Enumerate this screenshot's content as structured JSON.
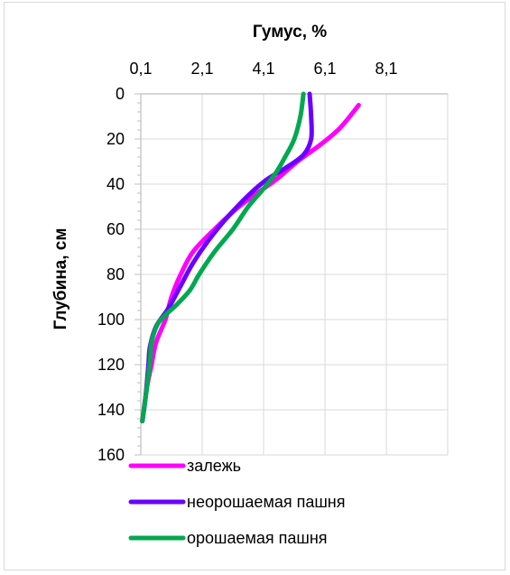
{
  "chart_data": {
    "type": "line",
    "title": "",
    "xlabel": "Гумус, %",
    "ylabel": "Глубина, см",
    "x_axis_position": "top",
    "y_axis_inverted": true,
    "xlim": [
      0.1,
      10.1
    ],
    "ylim": [
      0,
      160
    ],
    "x_ticks": [
      "0,1",
      "2,1",
      "4,1",
      "6,1",
      "8,1"
    ],
    "y_ticks": [
      "0",
      "20",
      "40",
      "60",
      "80",
      "100",
      "120",
      "140",
      "160"
    ],
    "grid": true,
    "legend_position": "bottom",
    "series": [
      {
        "name": "залежь",
        "color": "#ff00ff",
        "points": [
          {
            "x": 7.2,
            "y": 5
          },
          {
            "x": 6.6,
            "y": 15
          },
          {
            "x": 6.0,
            "y": 22
          },
          {
            "x": 5.2,
            "y": 30
          },
          {
            "x": 4.6,
            "y": 37
          },
          {
            "x": 4.1,
            "y": 42
          },
          {
            "x": 3.3,
            "y": 50
          },
          {
            "x": 2.5,
            "y": 60
          },
          {
            "x": 1.8,
            "y": 70
          },
          {
            "x": 1.4,
            "y": 80
          },
          {
            "x": 1.1,
            "y": 90
          },
          {
            "x": 0.9,
            "y": 100
          },
          {
            "x": 0.6,
            "y": 110
          },
          {
            "x": 0.45,
            "y": 120
          },
          {
            "x": 0.3,
            "y": 130
          },
          {
            "x": 0.15,
            "y": 145
          }
        ]
      },
      {
        "name": "неорошаемая пашня",
        "color": "#6a00ff",
        "points": [
          {
            "x": 5.6,
            "y": 0
          },
          {
            "x": 5.65,
            "y": 10
          },
          {
            "x": 5.65,
            "y": 20
          },
          {
            "x": 5.4,
            "y": 27
          },
          {
            "x": 4.8,
            "y": 33
          },
          {
            "x": 4.2,
            "y": 38
          },
          {
            "x": 3.6,
            "y": 45
          },
          {
            "x": 2.9,
            "y": 55
          },
          {
            "x": 2.3,
            "y": 65
          },
          {
            "x": 1.8,
            "y": 75
          },
          {
            "x": 1.4,
            "y": 85
          },
          {
            "x": 1.0,
            "y": 95
          },
          {
            "x": 0.6,
            "y": 103
          },
          {
            "x": 0.4,
            "y": 112
          },
          {
            "x": 0.35,
            "y": 120
          },
          {
            "x": 0.25,
            "y": 135
          },
          {
            "x": 0.15,
            "y": 145
          }
        ]
      },
      {
        "name": "орошаемая пашня",
        "color": "#00a84f",
        "points": [
          {
            "x": 5.4,
            "y": 0
          },
          {
            "x": 5.3,
            "y": 10
          },
          {
            "x": 5.1,
            "y": 20
          },
          {
            "x": 4.8,
            "y": 28
          },
          {
            "x": 4.5,
            "y": 35
          },
          {
            "x": 4.1,
            "y": 42
          },
          {
            "x": 3.6,
            "y": 50
          },
          {
            "x": 3.1,
            "y": 60
          },
          {
            "x": 2.5,
            "y": 70
          },
          {
            "x": 2.0,
            "y": 80
          },
          {
            "x": 1.7,
            "y": 87
          },
          {
            "x": 1.3,
            "y": 93
          },
          {
            "x": 0.9,
            "y": 98
          },
          {
            "x": 0.65,
            "y": 102
          },
          {
            "x": 0.45,
            "y": 110
          },
          {
            "x": 0.4,
            "y": 118
          },
          {
            "x": 0.3,
            "y": 130
          },
          {
            "x": 0.15,
            "y": 145
          }
        ]
      }
    ]
  }
}
